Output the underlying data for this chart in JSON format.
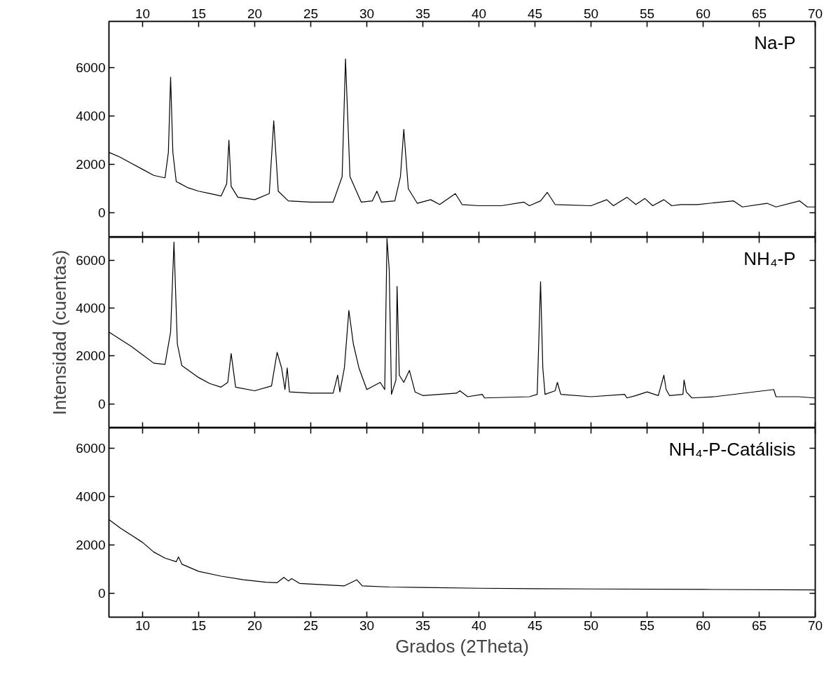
{
  "chart_data": [
    {
      "type": "line",
      "xlim": [
        7,
        70
      ],
      "ylim": [
        -1000,
        7900
      ],
      "yticks": [
        0,
        2000,
        4000,
        6000
      ],
      "x2lim": [
        7,
        70
      ],
      "x2ticks": [
        10,
        15,
        20,
        25,
        30,
        35,
        40,
        45,
        50,
        55,
        60,
        65,
        70
      ],
      "xticks": [
        10,
        15,
        20,
        25,
        30,
        35,
        40,
        45,
        50,
        55,
        60,
        65,
        70
      ],
      "tick_labels": "y",
      "grid": false,
      "marker": "none",
      "line_style": "solid",
      "annotations": [
        "Na-P"
      ],
      "series": [
        {
          "color": "#000000",
          "x": [
            7,
            8,
            9,
            10,
            11,
            12,
            12.3,
            12.5,
            12.7,
            13,
            14,
            15,
            16,
            17,
            17.5,
            17.7,
            17.9,
            18.5,
            20,
            21.3,
            21.7,
            22.1,
            23,
            25,
            27,
            27.8,
            28.1,
            28.5,
            29.5,
            30.5,
            30.9,
            31.3,
            32.5,
            33.0,
            33.3,
            33.7,
            34.5,
            35.7,
            36.5,
            37.9,
            38.5,
            40,
            42,
            44,
            44.5,
            45.5,
            46.1,
            46.8,
            50,
            51.4,
            52,
            53.2,
            54,
            54.8,
            55.5,
            56.5,
            57.2,
            58,
            59.5,
            62.7,
            63.5,
            65.7,
            66.5,
            68.6,
            69.3,
            70
          ],
          "values": [
            2500,
            2300,
            2050,
            1800,
            1550,
            1450,
            2500,
            5600,
            2500,
            1300,
            1050,
            900,
            800,
            700,
            1200,
            3000,
            1100,
            650,
            550,
            800,
            3800,
            900,
            500,
            450,
            450,
            1500,
            6350,
            1500,
            450,
            500,
            900,
            450,
            500,
            1500,
            3450,
            1000,
            400,
            550,
            350,
            800,
            350,
            300,
            300,
            450,
            300,
            500,
            850,
            350,
            300,
            550,
            300,
            650,
            350,
            600,
            300,
            550,
            300,
            350,
            350,
            500,
            250,
            400,
            250,
            500,
            250,
            250
          ]
        }
      ]
    },
    {
      "type": "line",
      "xlim": [
        7,
        70
      ],
      "ylim": [
        -1000,
        6950
      ],
      "yticks": [
        0,
        2000,
        4000,
        6000
      ],
      "xticks": [
        10,
        15,
        20,
        25,
        30,
        35,
        40,
        45,
        50,
        55,
        60,
        65,
        70
      ],
      "tick_labels": "y",
      "grid": false,
      "marker": "none",
      "line_style": "solid",
      "ylabel": "Intensidad (cuentas)",
      "annotations": [
        "NH₄-P"
      ],
      "series": [
        {
          "color": "#000000",
          "x": [
            7,
            8,
            9,
            10,
            11,
            12,
            12.5,
            12.8,
            13.1,
            13.5,
            15,
            16,
            17,
            17.6,
            17.9,
            18.3,
            20,
            21.5,
            22,
            22.4,
            22.7,
            22.9,
            23.1,
            25,
            27,
            27.4,
            27.6,
            28,
            28.4,
            28.8,
            29.3,
            30,
            31.2,
            31.6,
            31.8,
            32.0,
            32.2,
            32.6,
            32.7,
            32.9,
            33.3,
            33.8,
            34.3,
            35,
            38,
            38.3,
            39,
            40.3,
            40.5,
            44.5,
            45.2,
            45.5,
            45.7,
            45.9,
            46.8,
            47,
            47.3,
            50,
            53,
            53.2,
            54,
            55,
            56,
            56.5,
            56.7,
            57,
            58.2,
            58.3,
            58.5,
            59,
            61,
            66.3,
            66.5,
            68.5,
            70
          ],
          "values": [
            3000,
            2700,
            2400,
            2050,
            1700,
            1650,
            3000,
            6750,
            2500,
            1600,
            1100,
            850,
            700,
            900,
            2100,
            700,
            550,
            750,
            2150,
            1500,
            600,
            1500,
            500,
            450,
            450,
            1200,
            500,
            1500,
            3900,
            2500,
            1500,
            600,
            900,
            600,
            6900,
            5600,
            400,
            1000,
            4900,
            1200,
            900,
            1400,
            500,
            350,
            450,
            550,
            300,
            400,
            250,
            300,
            400,
            5100,
            1500,
            400,
            550,
            900,
            400,
            300,
            400,
            250,
            350,
            500,
            350,
            1200,
            600,
            350,
            400,
            1000,
            500,
            250,
            300,
            600,
            300,
            300,
            250
          ]
        }
      ]
    },
    {
      "type": "line",
      "xlim": [
        7,
        70
      ],
      "ylim": [
        -1000,
        6850
      ],
      "yticks": [
        0,
        2000,
        4000,
        6000
      ],
      "xticks": [
        10,
        15,
        20,
        25,
        30,
        35,
        40,
        45,
        50,
        55,
        60,
        65,
        70
      ],
      "grid": false,
      "marker": "none",
      "line_style": "solid",
      "xlabel": "Grados (2Theta)",
      "annotations": [
        "NH₄-P-Catálisis"
      ],
      "series": [
        {
          "color": "#000000",
          "x": [
            7,
            8,
            9,
            10,
            11,
            12,
            13,
            13.2,
            13.5,
            15,
            17,
            19,
            21,
            22,
            22.6,
            23,
            23.3,
            24,
            26,
            28,
            29.1,
            29.6,
            32,
            35,
            40,
            45,
            50,
            60,
            70
          ],
          "values": [
            3050,
            2700,
            2400,
            2100,
            1700,
            1450,
            1300,
            1500,
            1200,
            900,
            700,
            550,
            450,
            430,
            650,
            500,
            600,
            400,
            350,
            300,
            550,
            300,
            250,
            230,
            200,
            180,
            170,
            150,
            130
          ]
        }
      ]
    }
  ]
}
